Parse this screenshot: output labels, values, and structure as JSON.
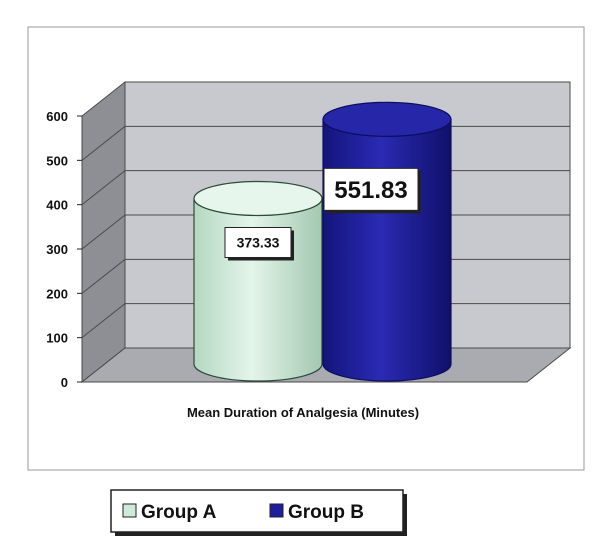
{
  "chart_data": {
    "type": "bar",
    "style": "3d-cylinder",
    "categories": [
      "Mean Duration of Analgesia (Minutes)"
    ],
    "series": [
      {
        "name": "Group A",
        "values": [
          373.33
        ],
        "value_label": "373.33",
        "color": "#cdebd8",
        "edge_color": "#2c4a3a"
      },
      {
        "name": "Group B",
        "values": [
          551.83
        ],
        "value_label": "551.83",
        "color": "#1e1e9e",
        "edge_color": "#0d0d60"
      }
    ],
    "xlabel": "Mean Duration of Analgesia (Minutes)",
    "ylabel": "",
    "title": "",
    "ylim": [
      0,
      600
    ],
    "yticks": [
      "0",
      "100",
      "200",
      "300",
      "400",
      "500",
      "600"
    ],
    "grid": true,
    "legend_position": "bottom"
  }
}
